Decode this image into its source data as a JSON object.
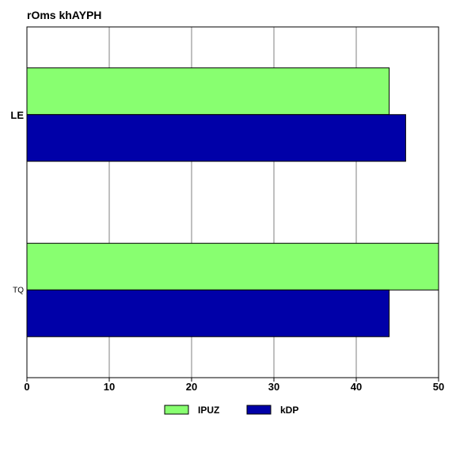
{
  "chart_data": {
    "type": "bar",
    "orientation": "horizontal",
    "title": "rOms khAYPH",
    "xlabel": "",
    "ylabel": "",
    "categories": [
      "LE",
      "TQ"
    ],
    "category_label_styles": [
      "bold",
      "small"
    ],
    "series": [
      {
        "name": "IPUZ",
        "color": "#88ff70",
        "values": [
          44,
          50
        ]
      },
      {
        "name": "kDP",
        "color": "#0000a8",
        "values": [
          46,
          44
        ]
      }
    ],
    "xlim": [
      0,
      50
    ],
    "xticks": [
      0,
      10,
      20,
      30,
      40,
      50
    ],
    "grid": true,
    "legend_position": "bottom"
  }
}
